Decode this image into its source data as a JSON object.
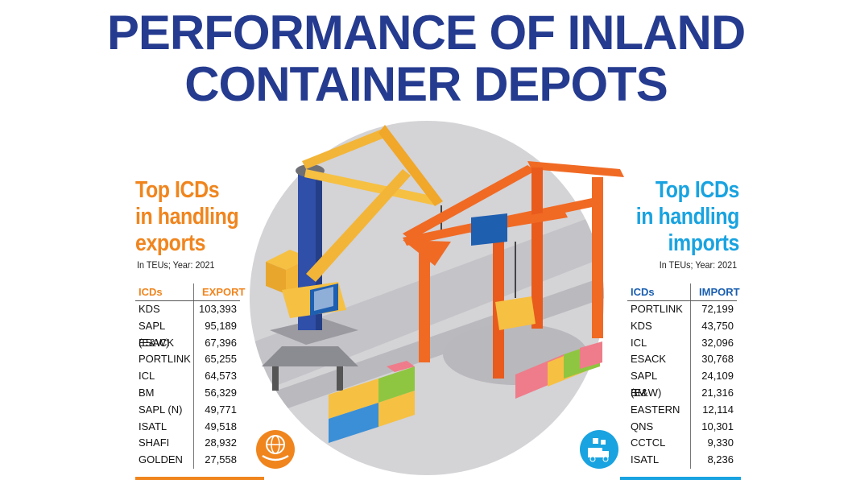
{
  "title_line1": "PERFORMANCE OF INLAND",
  "title_line2": "CONTAINER DEPOTS",
  "colors": {
    "title": "#253b8f",
    "export_accent": "#f0851e",
    "import_accent": "#19a3e0",
    "import_header": "#1b5fb0"
  },
  "icons": {
    "export_badge": "globe-hand-icon",
    "import_badge": "truck-boxes-icon"
  },
  "chart_data": [
    {
      "type": "table",
      "title": "Top ICDs in handling exports",
      "note": "In TEUs; Year: 2021",
      "columns": [
        "ICDs",
        "EXPORT"
      ],
      "rows": [
        {
          "name": "KDS",
          "value": "103,393"
        },
        {
          "name": "SAPL (E&W)",
          "value": "95,189"
        },
        {
          "name": "ESACK",
          "value": "67,396"
        },
        {
          "name": "PORTLINK",
          "value": "65,255"
        },
        {
          "name": "ICL",
          "value": "64,573"
        },
        {
          "name": "BM",
          "value": "56,329"
        },
        {
          "name": "SAPL (N)",
          "value": "49,771"
        },
        {
          "name": "ISATL",
          "value": "49,518"
        },
        {
          "name": "SHAFI",
          "value": "28,932"
        },
        {
          "name": "GOLDEN",
          "value": "27,558"
        }
      ]
    },
    {
      "type": "table",
      "title": "Top ICDs in handling imports",
      "note": "In TEUs; Year: 2021",
      "columns": [
        "ICDs",
        "IMPORT"
      ],
      "rows": [
        {
          "name": "PORTLINK",
          "value": "72,199"
        },
        {
          "name": "KDS",
          "value": "43,750"
        },
        {
          "name": "ICL",
          "value": "32,096"
        },
        {
          "name": "ESACK",
          "value": "30,768"
        },
        {
          "name": "SAPL (E&W)",
          "value": "24,109"
        },
        {
          "name": "BM",
          "value": "21,316"
        },
        {
          "name": "EASTERN",
          "value": "12,114"
        },
        {
          "name": "QNS",
          "value": "10,301"
        },
        {
          "name": "CCTCL",
          "value": "9,330"
        },
        {
          "name": "ISATL",
          "value": "8,236"
        }
      ]
    }
  ]
}
